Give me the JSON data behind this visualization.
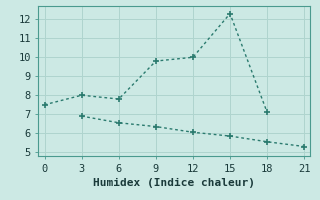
{
  "line1_x": [
    0,
    3,
    6,
    9,
    12,
    15,
    18
  ],
  "line1_y": [
    7.5,
    8.0,
    7.8,
    9.8,
    10.0,
    12.3,
    7.1
  ],
  "line2_x": [
    3,
    6,
    9,
    12,
    15,
    18,
    21
  ],
  "line2_y": [
    6.9,
    6.55,
    6.35,
    6.05,
    5.85,
    5.55,
    5.3
  ],
  "line_color": "#2a7a6e",
  "bg_color": "#cce9e4",
  "grid_color": "#afd4ce",
  "xlabel": "Humidex (Indice chaleur)",
  "xlim": [
    -0.5,
    21.5
  ],
  "ylim": [
    4.8,
    12.7
  ],
  "xticks": [
    0,
    3,
    6,
    9,
    12,
    15,
    18,
    21
  ],
  "yticks": [
    5,
    6,
    7,
    8,
    9,
    10,
    11,
    12
  ],
  "tick_fontsize": 7.5,
  "label_fontsize": 8
}
